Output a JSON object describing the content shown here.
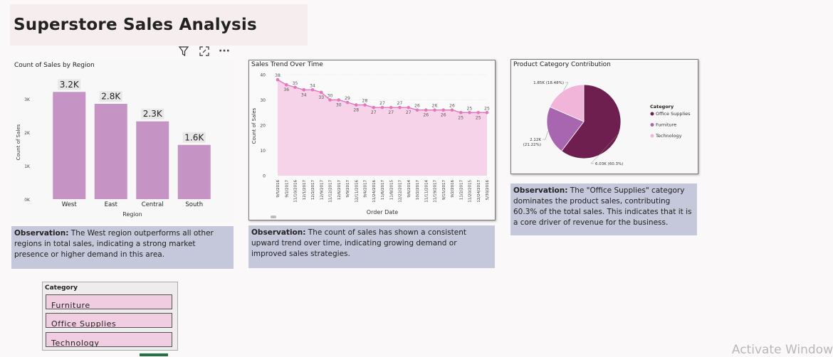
{
  "page": {
    "title": "Superstore Sales Analysis"
  },
  "toolbar": {
    "icons": [
      "filter-icon",
      "focus-mode-icon",
      "more-options-icon"
    ],
    "more_glyph": "···"
  },
  "chart_data": [
    {
      "type": "bar",
      "title": "Count of Sales by Region",
      "xlabel": "Region",
      "ylabel": "Count of Sales",
      "categories": [
        "West",
        "East",
        "Central",
        "South"
      ],
      "values": [
        3203,
        2848,
        2323,
        1620
      ],
      "data_labels": [
        "3.2K",
        "2.8K",
        "2.3K",
        "1.6K"
      ],
      "y_ticks": [
        "0K",
        "1K",
        "2K",
        "3K"
      ],
      "ylim": [
        0,
        3400
      ],
      "color": "#c594c5"
    },
    {
      "type": "area",
      "title": "Sales Trend Over Time",
      "xlabel": "Order Date",
      "ylabel": "Count of Sales",
      "y_ticks": [
        "0",
        "10",
        "20",
        "30",
        "40"
      ],
      "ylim": [
        0,
        40
      ],
      "x": [
        "9/5/2016",
        "9/2/2017",
        "11/10/2016",
        "12/1/2017",
        "12/2/2017",
        "12/9/2017",
        "11/12/2017",
        "12/6/2017",
        "9/9/2017",
        "12/11/2016",
        "9/4/2017",
        "11/24/2016",
        "11/6/2017",
        "11/8/2015",
        "12/22/2017",
        "9/6/2014",
        "10/2/2017",
        "11/11/2014",
        "11/19/2017",
        "9/15/2017",
        "9/2/2016",
        "11/2/2017",
        "11/20/2015",
        "12/24/2017",
        "5/30/2016"
      ],
      "values": [
        38,
        36,
        35,
        34,
        34,
        33,
        30,
        30,
        29,
        28,
        28,
        27,
        27,
        27,
        27,
        27,
        26,
        26,
        26,
        26,
        26,
        25,
        25,
        25,
        25
      ],
      "line_color": "#e277bd",
      "fill_color": "#f6d3e8"
    },
    {
      "type": "pie",
      "title": "Product Category Contribution",
      "legend_title": "Category",
      "legend_position": "right",
      "slices": [
        {
          "name": "Office Supplies",
          "value": 6026,
          "label": "6.03K (60.3%)",
          "color": "#6e1f4f"
        },
        {
          "name": "Furniture",
          "value": 2121,
          "label": "2.12K (21.22%)",
          "color": "#a865b0"
        },
        {
          "name": "Technology",
          "value": 1847,
          "label": "1.85K (18.48%)",
          "color": "#f0b5d9"
        }
      ]
    }
  ],
  "observations": {
    "region": {
      "label": "Observation:",
      "text": " The West region outperforms all other regions in total sales, indicating a strong market presence or higher demand in this area."
    },
    "trend": {
      "label": "Observation:",
      "text": " The count of sales has shown a consistent upward trend over time, indicating growing demand or improved sales strategies."
    },
    "category": {
      "label": "Observation:",
      "text": " The \"Office Supplies\" category dominates the product sales, contributing 60.3% of the total sales. This indicates that it is a core driver of revenue for the business."
    }
  },
  "slicer": {
    "title": "Category",
    "items": [
      "Furniture",
      "Office Supplies",
      "Technology"
    ]
  },
  "watermark": "Activate Window"
}
